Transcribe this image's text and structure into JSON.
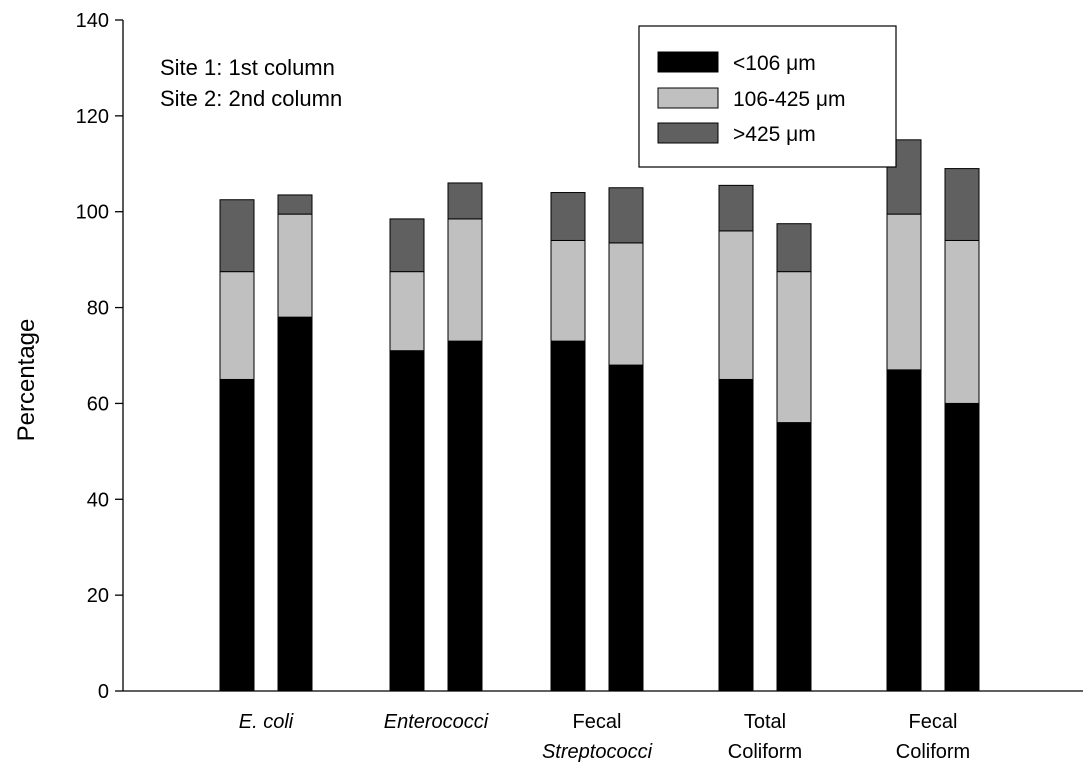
{
  "chart_data": {
    "type": "bar",
    "stacked": true,
    "ylabel": "Percentage",
    "xlabel": "",
    "ylim": [
      0,
      140
    ],
    "yticks": [
      0,
      20,
      40,
      60,
      80,
      100,
      120,
      140
    ],
    "grid": false,
    "legend_position": "top-right",
    "categories": [
      {
        "lines": [
          "E. coli"
        ],
        "italic": [
          true
        ]
      },
      {
        "lines": [
          "Enterococci"
        ],
        "italic": [
          true
        ]
      },
      {
        "lines": [
          "Fecal",
          "Streptococci"
        ],
        "italic": [
          false,
          true
        ]
      },
      {
        "lines": [
          "Total",
          "Coliform"
        ],
        "italic": [
          false,
          false
        ]
      },
      {
        "lines": [
          "Fecal",
          "Coliform"
        ],
        "italic": [
          false,
          false
        ]
      }
    ],
    "annotations": [
      "Site 1: 1st column",
      "Site 2: 2nd column"
    ],
    "series": [
      {
        "name": "<106 μm",
        "color": "#000000",
        "site1": [
          65,
          71,
          73,
          65,
          67
        ],
        "site2": [
          78,
          73,
          68,
          56,
          60
        ]
      },
      {
        "name": "106-425 μm",
        "color": "#c0c0c0",
        "site1": [
          22.5,
          16.5,
          21,
          31,
          32.5
        ],
        "site2": [
          21.5,
          25.5,
          25.5,
          31.5,
          34
        ]
      },
      {
        "name": ">425 μm",
        "color": "#606060",
        "site1": [
          15,
          11,
          10,
          9.5,
          15.5
        ],
        "site2": [
          4,
          7.5,
          11.5,
          10,
          15
        ]
      }
    ]
  }
}
